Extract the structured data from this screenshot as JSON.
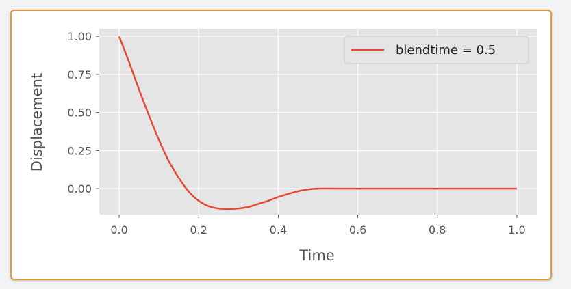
{
  "chart_data": {
    "type": "line",
    "title": "",
    "xlabel": "Time",
    "ylabel": "Displacement",
    "xlim": [
      -0.05,
      1.05
    ],
    "ylim": [
      -0.17,
      1.05
    ],
    "x_ticks": [
      0.0,
      0.2,
      0.4,
      0.6,
      0.8,
      1.0
    ],
    "x_tick_labels": [
      "0.0",
      "0.2",
      "0.4",
      "0.6",
      "0.8",
      "1.0"
    ],
    "y_ticks": [
      0.0,
      0.25,
      0.5,
      0.75,
      1.0
    ],
    "y_tick_labels": [
      "0.00",
      "0.25",
      "0.50",
      "0.75",
      "1.00"
    ],
    "grid": true,
    "legend": "top-right",
    "style": "ggplot",
    "series": [
      {
        "name": "blendtime = 0.5",
        "color": "#e24a33",
        "x": [
          0.0,
          0.025,
          0.05,
          0.075,
          0.1,
          0.125,
          0.15,
          0.175,
          0.2,
          0.225,
          0.25,
          0.275,
          0.3,
          0.325,
          0.35,
          0.375,
          0.4,
          0.425,
          0.45,
          0.475,
          0.5,
          0.55,
          0.6,
          0.7,
          0.8,
          0.9,
          1.0
        ],
        "y": [
          1.0,
          0.83,
          0.65,
          0.48,
          0.32,
          0.18,
          0.07,
          -0.02,
          -0.08,
          -0.115,
          -0.13,
          -0.133,
          -0.13,
          -0.12,
          -0.1,
          -0.08,
          -0.055,
          -0.035,
          -0.017,
          -0.005,
          0.0,
          0.0,
          0.0,
          0.0,
          0.0,
          0.0,
          0.0
        ]
      }
    ]
  }
}
